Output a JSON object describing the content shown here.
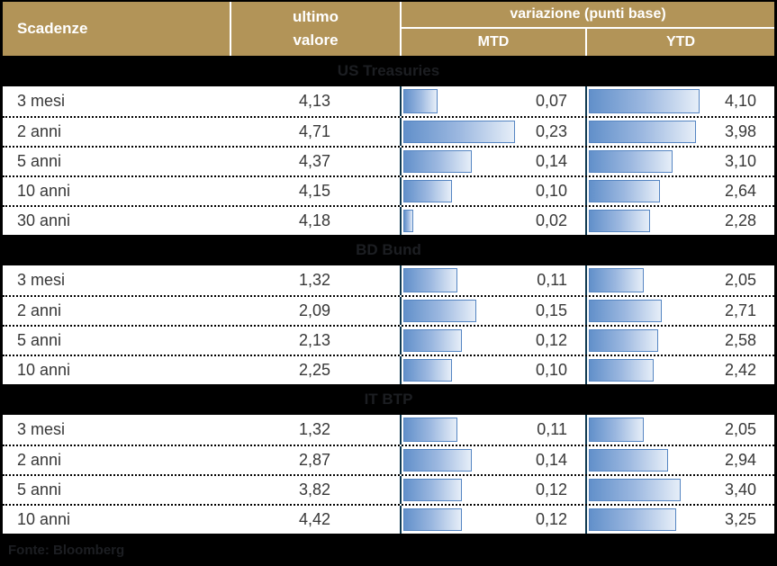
{
  "header": {
    "scadenze": "Scadenze",
    "ultimo_line1": "ultimo",
    "ultimo_line2": "valore",
    "variazione": "variazione (punti base)",
    "mtd": "MTD",
    "ytd": "YTD"
  },
  "footer": {
    "source": "Fonte: Bloomberg"
  },
  "colors": {
    "header_bg": "#b29458",
    "header_text": "#ffffff",
    "band_bg": "#000000",
    "band_text": "#1c1e22",
    "row_text": "#383838",
    "column_line": "#103a52",
    "bar_border": "#5585c2",
    "bar_gradient_start": "#6290ca",
    "bar_gradient_end": "#e6eef8"
  },
  "chart_data": {
    "type": "table",
    "title": "",
    "columns": [
      "Scadenze",
      "ultimo valore",
      "variazione MTD (punti base)",
      "variazione YTD (punti base)"
    ],
    "number_format": "decimal-comma",
    "bar_scale": {
      "mtd_max": 0.23,
      "mtd_fill": 0.61,
      "ytd_max": 4.1,
      "ytd_fill": 0.59
    },
    "sections": [
      {
        "title": "US Treasuries",
        "rows": [
          {
            "label": "3 mesi",
            "value": 4.13,
            "mtd": 0.07,
            "ytd": 4.1
          },
          {
            "label": "2 anni",
            "value": 4.71,
            "mtd": 0.23,
            "ytd": 3.98
          },
          {
            "label": "5 anni",
            "value": 4.37,
            "mtd": 0.14,
            "ytd": 3.1
          },
          {
            "label": "10 anni",
            "value": 4.15,
            "mtd": 0.1,
            "ytd": 2.64
          },
          {
            "label": "30 anni",
            "value": 4.18,
            "mtd": 0.02,
            "ytd": 2.28
          }
        ]
      },
      {
        "title": "BD Bund",
        "rows": [
          {
            "label": "3 mesi",
            "value": 1.32,
            "mtd": 0.11,
            "ytd": 2.05
          },
          {
            "label": "2 anni",
            "value": 2.09,
            "mtd": 0.15,
            "ytd": 2.71
          },
          {
            "label": "5 anni",
            "value": 2.13,
            "mtd": 0.12,
            "ytd": 2.58
          },
          {
            "label": "10 anni",
            "value": 2.25,
            "mtd": 0.1,
            "ytd": 2.42
          }
        ]
      },
      {
        "title": "IT BTP",
        "rows": [
          {
            "label": "3 mesi",
            "value": 1.32,
            "mtd": 0.11,
            "ytd": 2.05
          },
          {
            "label": "2 anni",
            "value": 2.87,
            "mtd": 0.14,
            "ytd": 2.94
          },
          {
            "label": "5 anni",
            "value": 3.82,
            "mtd": 0.12,
            "ytd": 3.4
          },
          {
            "label": "10 anni",
            "value": 4.42,
            "mtd": 0.12,
            "ytd": 3.25
          }
        ]
      }
    ],
    "source": "Fonte: Bloomberg"
  }
}
